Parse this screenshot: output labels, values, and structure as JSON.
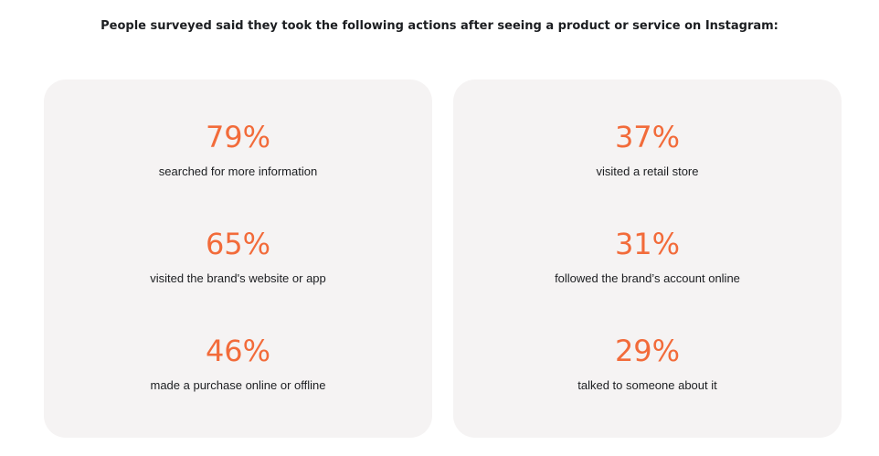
{
  "heading": "People surveyed said they took the following actions after seeing a product or service on Instagram:",
  "accent_color": "#f26b3a",
  "card_background": "#f5f3f3",
  "cards": [
    {
      "stats": [
        {
          "value": "79%",
          "label": "searched for more information"
        },
        {
          "value": "65%",
          "label": "visited the brand's website or app"
        },
        {
          "value": "46%",
          "label": "made a purchase online or offline"
        }
      ]
    },
    {
      "stats": [
        {
          "value": "37%",
          "label": "visited a retail store"
        },
        {
          "value": "31%",
          "label": "followed the brand’s account online"
        },
        {
          "value": "29%",
          "label": "talked to someone about it"
        }
      ]
    }
  ]
}
